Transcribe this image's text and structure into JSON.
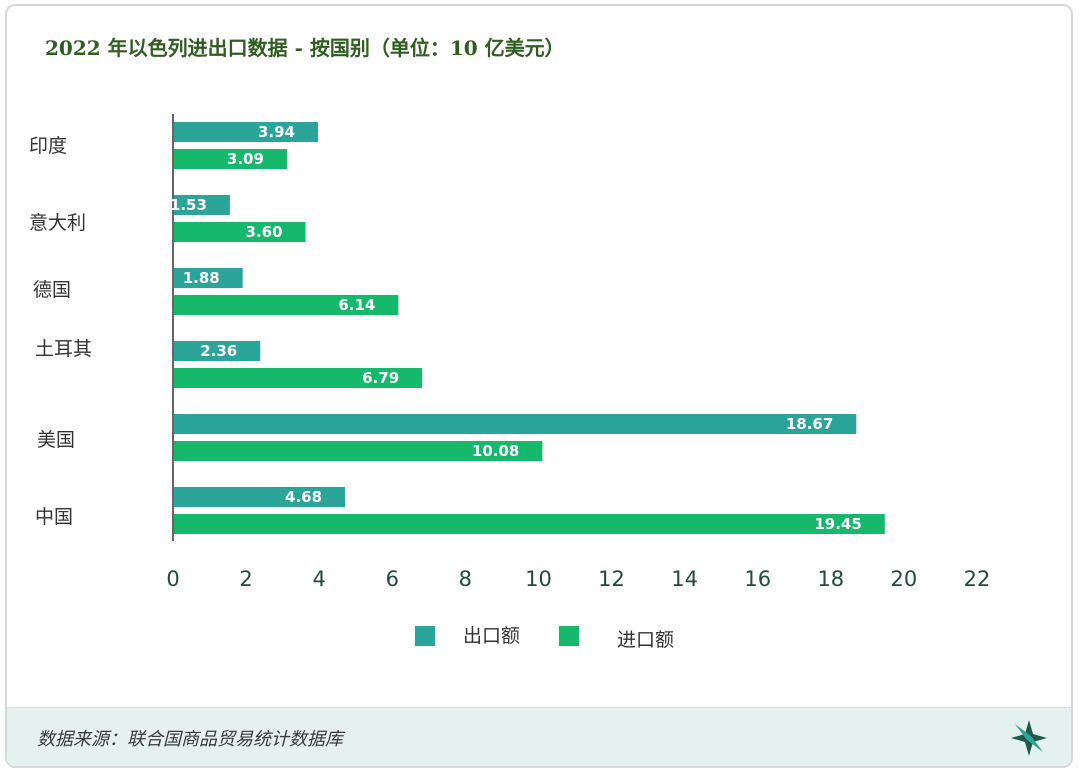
{
  "title": "2022 年以色列进出口数据 - 按国别（单位：10 亿美元）",
  "source": "数据来源：联合国商品贸易统计数据库",
  "colors": {
    "export": "#2ba59a",
    "import": "#16b86c",
    "axis_text": "#1f4d3b",
    "label_text": "#333333"
  },
  "chart_data": {
    "type": "bar",
    "orientation": "horizontal",
    "categories": [
      "印度",
      "意大利",
      "德国",
      "土耳其",
      "美国",
      "中国"
    ],
    "series": [
      {
        "name": "出口额",
        "values": [
          3.94,
          1.53,
          1.88,
          2.36,
          18.67,
          4.68
        ]
      },
      {
        "name": "进口额",
        "values": [
          3.09,
          3.6,
          6.14,
          6.79,
          10.08,
          19.45
        ]
      }
    ],
    "value_labels": [
      [
        "3.94",
        "1.53",
        "1.88",
        "2.36",
        "18.67",
        "4.68"
      ],
      [
        "3.09",
        "3.60",
        "6.14",
        "6.79",
        "10.08",
        "19.45"
      ]
    ],
    "xlim": [
      0,
      22
    ],
    "xticks": [
      "0",
      "2",
      "4",
      "6",
      "8",
      "10",
      "12",
      "14",
      "16",
      "18",
      "20",
      "22"
    ],
    "legend_position": "bottom-center",
    "grid": false
  }
}
